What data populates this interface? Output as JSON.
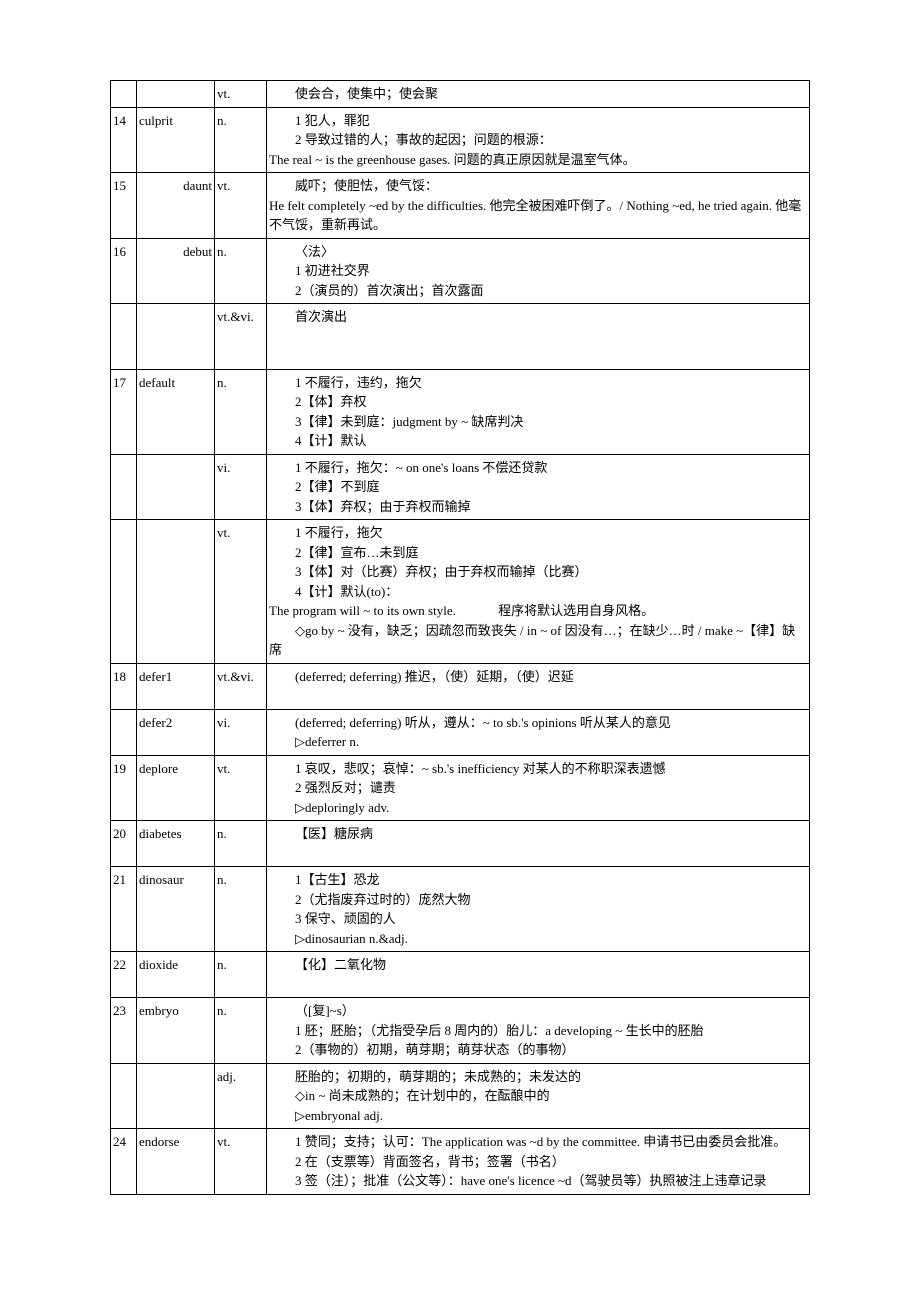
{
  "rows": [
    {
      "num": "",
      "word": "",
      "pos": "vt.",
      "def": "<span class='indent'>使会合，使集中；使会聚</span>"
    },
    {
      "num": "14",
      "word": "culprit",
      "pos": "n.",
      "def": "<span class='indent'>1 犯人，罪犯</span><span class='indent'>2 导致过错的人；事故的起因；问题的根源：</span><span class='sample'>The real ~ is the greenhouse gases. 问题的真正原因就是温室气体。</span>"
    },
    {
      "num": "15",
      "word": "daunt",
      "wordAlign": "right",
      "pos": "vt.",
      "def": "<span class='indent'>威吓；使胆怯，使气馁：</span><span class='sample'>He felt completely ~ed by the difficulties. 他完全被困难吓倒了。/ Nothing ~ed, he tried again. 他毫不气馁，重新再试。</span>"
    },
    {
      "num": "16",
      "word": "debut",
      "wordAlign": "right",
      "pos": "n.",
      "def": "<span class='indent'>〈法〉</span><span class='indent'>1 初进社交界</span><span class='indent'>2（演员的）首次演出；首次露面</span>"
    },
    {
      "num": "",
      "word": "",
      "pos": "vt.&vi.",
      "def": "<span class='indent'>首次演出</span><br><br>"
    },
    {
      "num": "17",
      "word": "default",
      "pos": "n.",
      "def": "<span class='indent'>1 不履行，违约，拖欠</span><span class='indent'>2【体】弃权</span><span class='indent'>3【律】未到庭：judgment by ~ 缺席判决</span><span class='indent'>4【计】默认</span>"
    },
    {
      "num": "",
      "word": "",
      "pos": "vi.",
      "def": "<span class='indent'>1 不履行，拖欠：~ on one's loans 不偿还贷款</span><span class='indent'>2【律】不到庭</span><span class='indent'>3【体】弃权；由于弃权而输掉</span>"
    },
    {
      "num": "",
      "word": "",
      "pos": "vt.",
      "def": "<span class='indent'>1 不履行，拖欠</span><span class='indent'>2【律】宣布…未到庭</span><span class='indent'>3【体】对（比赛）弃权；由于弃权而输掉（比赛）</span><span class='indent'>4【计】默认(to)：</span><span class='sample'>The program will ~ to its own style. &nbsp;&nbsp;&nbsp;&nbsp;&nbsp;&nbsp;&nbsp;&nbsp;&nbsp;&nbsp;&nbsp;&nbsp;程序将默认选用自身风格。</span><span class='indent'>◇go by ~ 没有，缺乏；因疏忽而致丧失 / in ~ of 因没有…；在缺少…时 / make ~【律】缺席</span>"
    },
    {
      "num": "18",
      "word": "defer1",
      "pos": "vt.&vi.",
      "def": "<span class='indent'>(deferred; deferring) 推迟，（使）延期，（使）迟延</span><br>"
    },
    {
      "num": "",
      "word": "defer2",
      "pos": "vi.",
      "def": "<span class='indent'>(deferred; deferring) 听从，遵从：~ to sb.'s opinions 听从某人的意见</span><span class='indent'>▷deferrer n.</span>"
    },
    {
      "num": "19",
      "word": "deplore",
      "pos": "vt.",
      "def": "<span class='indent'>1 哀叹，悲叹；哀悼：~ sb.'s inefficiency 对某人的不称职深表遗憾</span><span class='indent'>2 强烈反对；谴责</span><span class='indent'>▷deploringly adv.</span>"
    },
    {
      "num": "20",
      "word": "diabetes",
      "pos": "n.",
      "def": "<span class='indent'>【医】糖尿病</span><br>"
    },
    {
      "num": "21",
      "word": "dinosaur",
      "pos": "n.",
      "def": "<span class='indent'>1【古生】恐龙</span><span class='indent'>2（尤指废弃过时的）庞然大物</span><span class='indent'>3 保守、顽固的人</span><span class='indent'>▷dinosaurian n.&adj.</span>"
    },
    {
      "num": "22",
      "word": "dioxide",
      "pos": "n.",
      "def": "<span class='indent'>【化】二氧化物</span><br>"
    },
    {
      "num": "23",
      "word": "embryo",
      "pos": "n.",
      "def": "<span class='indent'>（[复]~s）</span><span class='indent'>1 胚；胚胎；（尤指受孕后 8 周内的）胎儿：a developing ~ 生长中的胚胎</span><span class='indent'>2（事物的）初期，萌芽期；萌芽状态（的事物）</span>"
    },
    {
      "num": "",
      "word": "",
      "pos": "adj.",
      "def": "<span class='indent'>胚胎的；初期的，萌芽期的；未成熟的；未发达的</span><span class='indent'>◇in ~ 尚未成熟的；在计划中的，在酝酿中的</span><span class='indent'>▷embryonal adj.</span>"
    },
    {
      "num": "24",
      "word": "endorse",
      "pos": "vt.",
      "def": "<span class='indent'>1 赞同；支持；认可：The application was ~d by the committee. 申请书已由委员会批准。</span><span class='indent'>2 在（支票等）背面签名，背书；签署（书名）</span><span class='indent'>3 签（注）；批准（公文等）：have one's licence ~d（驾驶员等）执照被注上违章记录</span>"
    }
  ]
}
